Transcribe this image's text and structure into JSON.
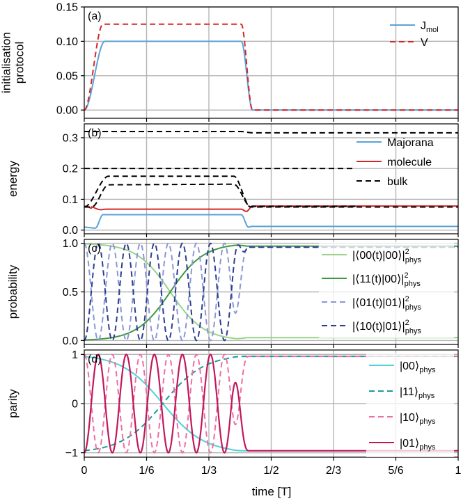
{
  "chart_data": {
    "type": "line",
    "xlabel": "time [T]",
    "xlim": [
      0,
      1
    ],
    "xticks": [
      0,
      0.16667,
      0.33333,
      0.5,
      0.66667,
      0.83333,
      1
    ],
    "xtick_labels": [
      "0",
      "1/6",
      "1/3",
      "1/2",
      "2/3",
      "5/6",
      "1"
    ],
    "grid_x": [
      0.16667,
      0.33333,
      0.5,
      0.66667,
      0.83333
    ],
    "panels": [
      {
        "id": "a",
        "panel_label": "(a)",
        "ylabel": [
          "initialisation",
          "protocol"
        ],
        "ylim": [
          -0.012,
          0.15
        ],
        "yticks": [
          0.0,
          0.05,
          0.1,
          0.15
        ],
        "ytick_labels": [
          "0.00",
          "0.05",
          "0.10",
          "0.15"
        ],
        "legend": [
          {
            "label": "J",
            "sub": "mol",
            "color": "#5aa2d8",
            "dash": false
          },
          {
            "label": "V",
            "sub": "",
            "color": "#d62728",
            "dash": true
          }
        ],
        "series": [
          {
            "name": "J_mol",
            "color": "#5aa2d8",
            "dash": false,
            "width": 2,
            "curve": "plateau",
            "base": 0.0,
            "high": 0.1,
            "rise_start": 0.0,
            "rise_end": 0.055,
            "fall_start": 0.42,
            "fall_end": 0.45
          },
          {
            "name": "V",
            "color": "#d62728",
            "dash": true,
            "width": 2,
            "curve": "plateau",
            "base": 0.0,
            "high": 0.125,
            "rise_start": 0.0,
            "rise_end": 0.05,
            "fall_start": 0.42,
            "fall_end": 0.45
          }
        ]
      },
      {
        "id": "b",
        "panel_label": "(b)",
        "ylabel": [
          "energy"
        ],
        "ylim": [
          -0.012,
          0.345
        ],
        "yticks": [
          0.0,
          0.1,
          0.2,
          0.3
        ],
        "ytick_labels": [
          "0.0",
          "0.1",
          "0.2",
          "0.3"
        ],
        "legend": [
          {
            "label": "Majorana",
            "sub": "",
            "color": "#5aa2d8",
            "dash": false
          },
          {
            "label": "molecule",
            "sub": "",
            "color": "#d62728",
            "dash": false
          },
          {
            "label": "bulk",
            "sub": "",
            "color": "#000000",
            "dash": true
          }
        ],
        "series": [
          {
            "name": "Majorana",
            "color": "#5aa2d8",
            "dash": false,
            "width": 2,
            "curve": "energy_majorana"
          },
          {
            "name": "molecule",
            "color": "#d62728",
            "dash": false,
            "width": 2,
            "curve": "energy_molecule"
          },
          {
            "name": "bulk 1",
            "color": "#000000",
            "dash": true,
            "width": 2,
            "curve": "bulk_top"
          },
          {
            "name": "bulk 2",
            "color": "#000000",
            "dash": true,
            "width": 2,
            "curve": "bulk_mid"
          },
          {
            "name": "bulk 3",
            "color": "#000000",
            "dash": true,
            "width": 2,
            "curve": "bulk_bump"
          },
          {
            "name": "bulk 4",
            "color": "#000000",
            "dash": true,
            "width": 2,
            "curve": "bulk_low"
          }
        ]
      },
      {
        "id": "c",
        "panel_label": "(c)",
        "ylabel": [
          "probability"
        ],
        "ylim": [
          -0.04,
          1.04
        ],
        "yticks": [
          0.0,
          0.5,
          1.0
        ],
        "ytick_labels": [
          "0.0",
          "0.5",
          "1.0"
        ],
        "legend": [
          {
            "label": "|⟨00(t)|00⟩|",
            "sup": "2",
            "sub": "phys",
            "color": "#98d487",
            "dash": false
          },
          {
            "label": "|⟨11(t)|00⟩|",
            "sup": "2",
            "sub": "phys",
            "color": "#3e9a3e",
            "dash": false
          },
          {
            "label": "|⟨01(t)|01⟩|",
            "sup": "2",
            "sub": "phys",
            "color": "#8a97d6",
            "dash": true
          },
          {
            "label": "|⟨10(t)|01⟩|",
            "sup": "2",
            "sub": "phys",
            "color": "#2c3d91",
            "dash": true
          }
        ],
        "series": [
          {
            "name": "P00",
            "color": "#98d487",
            "dash": false,
            "width": 2,
            "curve": "prob_decay"
          },
          {
            "name": "P11",
            "color": "#3e9a3e",
            "dash": false,
            "width": 2,
            "curve": "prob_rise"
          },
          {
            "name": "P01",
            "color": "#8a97d6",
            "dash": true,
            "width": 2,
            "curve": "prob_osc_a"
          },
          {
            "name": "P10",
            "color": "#2c3d91",
            "dash": true,
            "width": 2,
            "curve": "prob_osc_b"
          }
        ]
      },
      {
        "id": "d",
        "panel_label": "(d)",
        "ylabel": [
          "parity"
        ],
        "ylim": [
          -1.09,
          1.09
        ],
        "yticks": [
          -1,
          0,
          1
        ],
        "ytick_labels": [
          "−1",
          "0",
          "1"
        ],
        "legend": [
          {
            "label": "|00⟩",
            "sub": "phys",
            "color": "#4fd0da",
            "dash": false
          },
          {
            "label": "|11⟩",
            "sub": "phys",
            "color": "#1a9a9a",
            "dash": true
          },
          {
            "label": "|10⟩",
            "sub": "phys",
            "color": "#ee6fa3",
            "dash": true
          },
          {
            "label": "|01⟩",
            "sub": "phys",
            "color": "#c2185b",
            "dash": false
          }
        ],
        "series": [
          {
            "name": "parity 00",
            "color": "#4fd0da",
            "dash": false,
            "width": 2,
            "curve": "par_decay"
          },
          {
            "name": "parity 11",
            "color": "#1a9a9a",
            "dash": true,
            "width": 2,
            "curve": "par_rise"
          },
          {
            "name": "parity 10",
            "color": "#ee6fa3",
            "dash": true,
            "width": 2,
            "curve": "par_osc_a"
          },
          {
            "name": "parity 01",
            "color": "#c2185b",
            "dash": false,
            "width": 2.2,
            "curve": "par_osc_b"
          }
        ]
      }
    ]
  }
}
